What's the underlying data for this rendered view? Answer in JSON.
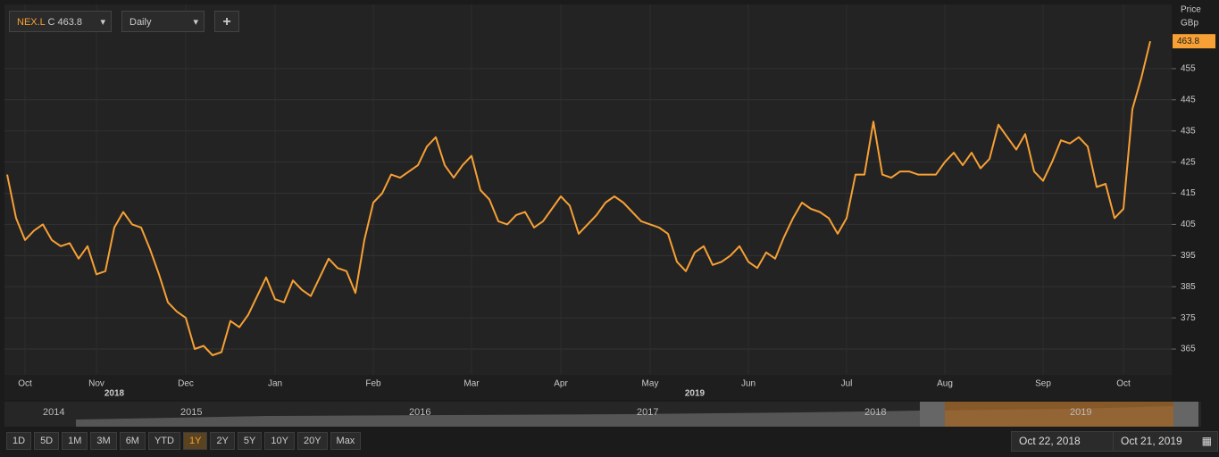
{
  "toolbar": {
    "symbol": "NEX.L",
    "quote": "C 463.8",
    "interval": "Daily",
    "add": "+"
  },
  "chart_data": {
    "type": "line",
    "y_label": "Price",
    "y_unit": "GBp",
    "last_value_label": "463.8",
    "color": "#f7a035",
    "grid": true,
    "ylim": [
      356.7,
      475.6
    ],
    "yticks": [
      365,
      375,
      385,
      395,
      405,
      415,
      425,
      435,
      445,
      455
    ],
    "categories": [
      null,
      null,
      "Oct",
      null,
      null,
      null,
      null,
      null,
      null,
      null,
      "Nov",
      null,
      null,
      null,
      null,
      null,
      null,
      null,
      null,
      null,
      "Dec",
      null,
      null,
      null,
      null,
      null,
      null,
      null,
      null,
      null,
      "Jan",
      null,
      null,
      null,
      null,
      null,
      null,
      null,
      null,
      null,
      null,
      "Feb",
      null,
      null,
      null,
      null,
      null,
      null,
      null,
      null,
      null,
      null,
      "Mar",
      null,
      null,
      null,
      null,
      null,
      null,
      null,
      null,
      null,
      "Apr",
      null,
      null,
      null,
      null,
      null,
      null,
      null,
      null,
      null,
      "May",
      null,
      null,
      null,
      null,
      null,
      null,
      null,
      null,
      null,
      null,
      "Jun",
      null,
      null,
      null,
      null,
      null,
      null,
      null,
      null,
      null,
      null,
      "Jul",
      null,
      null,
      null,
      null,
      null,
      null,
      null,
      null,
      null,
      null,
      "Aug",
      null,
      null,
      null,
      null,
      null,
      null,
      null,
      null,
      null,
      null,
      "Sep",
      null,
      null,
      null,
      null,
      null,
      null,
      null,
      null,
      "Oct",
      null,
      null,
      null
    ],
    "year_categories": [
      null,
      null,
      null,
      null,
      null,
      null,
      null,
      null,
      null,
      null,
      null,
      null,
      "2018",
      null,
      null,
      null,
      null,
      null,
      null,
      null,
      null,
      null,
      null,
      null,
      null,
      null,
      null,
      null,
      null,
      null,
      null,
      null,
      null,
      null,
      null,
      null,
      null,
      null,
      null,
      null,
      null,
      null,
      null,
      null,
      null,
      null,
      null,
      null,
      null,
      null,
      null,
      null,
      null,
      null,
      null,
      null,
      null,
      null,
      null,
      null,
      null,
      null,
      null,
      null,
      null,
      null,
      null,
      null,
      null,
      null,
      null,
      null,
      null,
      null,
      null,
      null,
      null,
      "2019",
      null,
      null,
      null,
      null,
      null,
      null,
      null,
      null,
      null,
      null,
      null,
      null,
      null,
      null,
      null,
      null,
      null,
      null,
      null,
      null,
      null,
      null,
      null,
      null,
      null,
      null,
      null,
      null,
      null,
      null,
      null,
      null,
      null,
      null,
      null,
      null,
      null,
      null,
      null,
      null,
      null,
      null,
      null,
      null,
      null,
      null,
      null,
      null,
      null,
      null,
      null
    ],
    "values": [
      421,
      407,
      400,
      403,
      405,
      400,
      398,
      399,
      394,
      398,
      389,
      390,
      404,
      409,
      405,
      404,
      397,
      389,
      380,
      377,
      375,
      365,
      366,
      363,
      364,
      374,
      372,
      376,
      382,
      388,
      381,
      380,
      387,
      384,
      382,
      388,
      394,
      391,
      390,
      383,
      400,
      412,
      415,
      421,
      420,
      422,
      424,
      430,
      433,
      424,
      420,
      424,
      427,
      416,
      413,
      406,
      405,
      408,
      409,
      404,
      406,
      410,
      414,
      411,
      402,
      405,
      408,
      412,
      414,
      412,
      409,
      406,
      405,
      404,
      402,
      393,
      390,
      396,
      398,
      392,
      393,
      395,
      398,
      393,
      391,
      396,
      394,
      401,
      407,
      412,
      410,
      409,
      407,
      402,
      407,
      421,
      421,
      438,
      421,
      420,
      422,
      422,
      421,
      421,
      421,
      425,
      428,
      424,
      428,
      423,
      426,
      437,
      433,
      429,
      434,
      422,
      419,
      425,
      432,
      431,
      433,
      430,
      417,
      418,
      407,
      410,
      442,
      452,
      463.8
    ]
  },
  "navigator": {
    "years": [
      "2014",
      "2015",
      "2016",
      "2017",
      "2018",
      "2019"
    ]
  },
  "range_buttons": [
    "1D",
    "5D",
    "1M",
    "3M",
    "6M",
    "YTD",
    "1Y",
    "2Y",
    "5Y",
    "10Y",
    "20Y",
    "Max"
  ],
  "date_range": {
    "from": "Oct 22, 2018",
    "to": "Oct 21, 2019"
  }
}
